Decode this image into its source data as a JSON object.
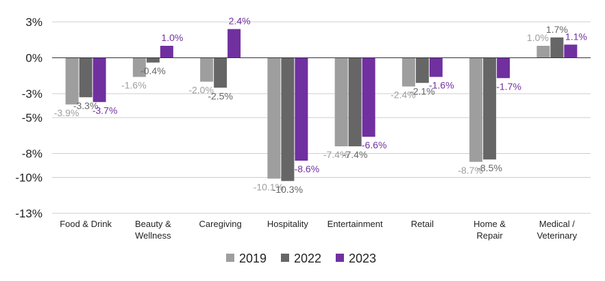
{
  "chart_data": {
    "type": "bar",
    "title": "",
    "xlabel": "",
    "ylabel": "",
    "ylim": [
      -13,
      3
    ],
    "yticks": [
      3,
      0,
      -3,
      -5,
      -8,
      -10,
      -13
    ],
    "ytick_labels": [
      "3%",
      "0%",
      "-3%",
      "-5%",
      "-8%",
      "-10%",
      "-13%"
    ],
    "grid": true,
    "legend_position": "bottom",
    "categories": [
      [
        "Food & Drink"
      ],
      [
        "Beauty &",
        "Wellness"
      ],
      [
        "Caregiving"
      ],
      [
        "Hospitality"
      ],
      [
        "Entertainment"
      ],
      [
        "Retail"
      ],
      [
        "Home &",
        "Repair"
      ],
      [
        "Medical /",
        "Veterinary"
      ]
    ],
    "series": [
      {
        "name": "2019",
        "color": "#9e9e9e",
        "values": [
          -3.9,
          -1.6,
          -2.0,
          -10.1,
          -7.4,
          -2.4,
          -8.7,
          1.0
        ],
        "labels": [
          "-3.9%",
          "-1.6%",
          "-2.0%",
          "-10.1%",
          "-7.4%",
          "-2.4%",
          "-8.7%",
          "1.0%"
        ]
      },
      {
        "name": "2022",
        "color": "#666666",
        "values": [
          -3.3,
          -0.4,
          -2.5,
          -10.3,
          -7.4,
          -2.1,
          -8.5,
          1.7
        ],
        "labels": [
          "-3.3%",
          "-0.4%",
          "-2.5%",
          "-10.3%",
          "-7.4%",
          "-2.1%",
          "-8.5%",
          "1.7%"
        ]
      },
      {
        "name": "2023",
        "color": "#7030a0",
        "values": [
          -3.7,
          1.0,
          2.4,
          -8.6,
          -6.6,
          -1.6,
          -1.7,
          1.1
        ],
        "labels": [
          "-3.7%",
          "1.0%",
          "2.4%",
          "-8.6%",
          "-6.6%",
          "-1.6%",
          "-1.7%",
          "1.1%"
        ]
      }
    ]
  }
}
